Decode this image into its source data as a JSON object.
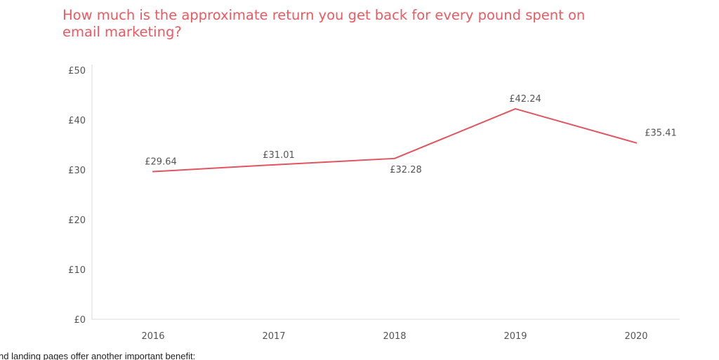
{
  "chart_data": {
    "type": "line",
    "title": "How much is the approximate return you get back for every pound spent on email marketing?",
    "categories": [
      "2016",
      "2017",
      "2018",
      "2019",
      "2020"
    ],
    "series": [
      {
        "values": [
          29.64,
          31.01,
          32.28,
          42.24,
          35.41
        ],
        "data_labels": [
          "£29.64",
          "£31.01",
          "£32.28",
          "£42.24",
          "£35.41"
        ]
      }
    ],
    "y_ticks": [
      0,
      10,
      20,
      30,
      40,
      50
    ],
    "y_tick_labels": [
      "£0",
      "£10",
      "£20",
      "£30",
      "£40",
      "£50"
    ],
    "ylim": [
      0,
      50
    ],
    "xlabel": "",
    "ylabel": "",
    "grid": false,
    "line_color": "#e05560",
    "title_color": "#e85b63"
  },
  "footer": {
    "text": "nd landing pages offer another important benefit:"
  }
}
